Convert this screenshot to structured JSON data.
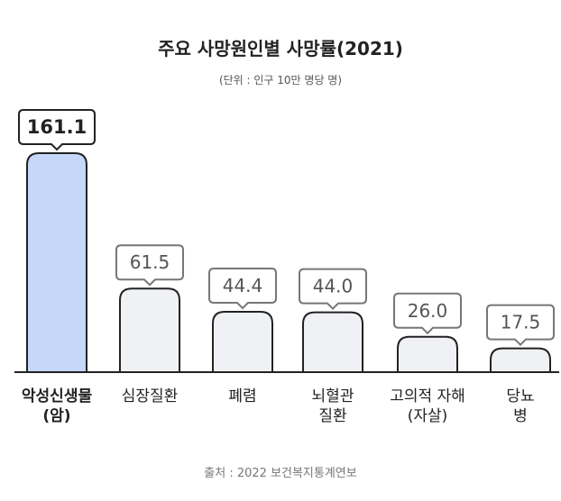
{
  "colors": {
    "highlight_fill": "#c5d8fa",
    "bar_fill": "#f0f1f4",
    "bar_stroke": "#222222",
    "bubble_stroke": "#777777",
    "highlight_bubble_stroke": "#222222",
    "axis": "#222222"
  },
  "chart_data": {
    "type": "bar",
    "title": "주요 사망원인별 사망률(2021)",
    "subtitle": "(단위 : 인구 10만 명당 명)",
    "categories": [
      "악성신생물\n(암)",
      "심장질환",
      "폐렴",
      "뇌혈관\n질환",
      "고의적 자해\n(자살)",
      "당뇨병"
    ],
    "values": [
      161.1,
      61.5,
      44.4,
      44.0,
      26.0,
      17.5
    ],
    "value_labels": [
      "161.1",
      "61.5",
      "44.4",
      "44.0",
      "26.0",
      "17.5"
    ],
    "highlight_index": 0,
    "source": "출처 : 2022 보건복지통계연보"
  }
}
